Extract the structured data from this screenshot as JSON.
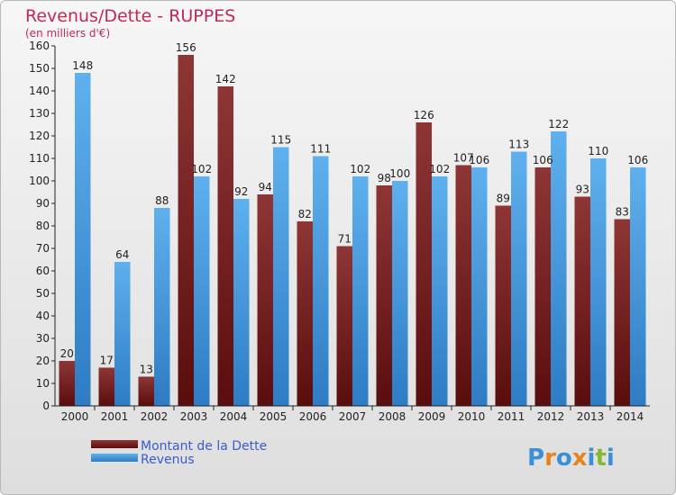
{
  "chart_data": {
    "type": "bar",
    "title": "Revenus/Dette - RUPPES",
    "subtitle": "(en milliers d'€)",
    "categories": [
      "2000",
      "2001",
      "2002",
      "2003",
      "2004",
      "2005",
      "2006",
      "2007",
      "2008",
      "2009",
      "2010",
      "2011",
      "2012",
      "2013",
      "2014"
    ],
    "series": [
      {
        "name": "Montant de la Dette",
        "color": "#6b1515",
        "values": [
          20,
          17,
          13,
          156,
          142,
          94,
          82,
          71,
          98,
          126,
          107,
          89,
          106,
          93,
          83
        ]
      },
      {
        "name": "Revenus",
        "color": "#3a8fd8",
        "values": [
          148,
          64,
          88,
          102,
          92,
          115,
          111,
          102,
          100,
          102,
          106,
          113,
          122,
          110,
          106
        ]
      }
    ],
    "ylim": [
      0,
      160
    ],
    "ytick_step": 10,
    "grid": false,
    "legend_position": "bottom-left"
  },
  "brand": {
    "name": "Proxiti",
    "letters": [
      "P",
      "r",
      "o",
      "x",
      "i",
      "t",
      "i"
    ],
    "letter_colors": [
      "#3a8fd8",
      "#e8821e",
      "#3a8fd8",
      "#e8821e",
      "#3a8fd8",
      "#86b832",
      "#3a8fd8"
    ]
  }
}
